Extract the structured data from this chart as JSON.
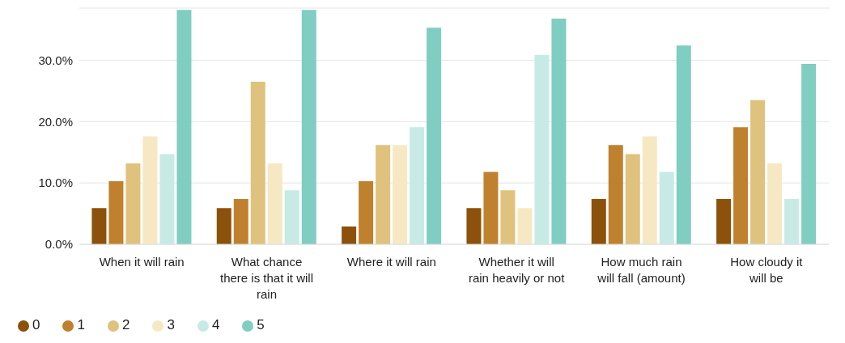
{
  "chart_data": {
    "type": "bar",
    "categories": [
      "When it will rain",
      "What chance there is that it will rain",
      "Where it will rain",
      "Whether it will rain heavily or not",
      "How much rain will fall (amount)",
      "How cloudy it will be"
    ],
    "series": [
      {
        "name": "0",
        "color": "#8c510a",
        "values": [
          5.9,
          5.9,
          2.9,
          5.9,
          7.4,
          7.4
        ]
      },
      {
        "name": "1",
        "color": "#bf812d",
        "values": [
          10.3,
          7.4,
          10.3,
          11.8,
          16.2,
          19.1
        ]
      },
      {
        "name": "2",
        "color": "#dfc27d",
        "values": [
          13.2,
          26.5,
          16.2,
          8.8,
          14.7,
          23.5
        ]
      },
      {
        "name": "3",
        "color": "#f6e8c3",
        "values": [
          17.6,
          13.2,
          16.2,
          5.9,
          17.6,
          13.2
        ]
      },
      {
        "name": "4",
        "color": "#c7eae5",
        "values": [
          14.7,
          8.8,
          19.1,
          30.9,
          11.8,
          7.4
        ]
      },
      {
        "name": "5",
        "color": "#80cdc1",
        "values": [
          38.2,
          38.2,
          35.3,
          36.8,
          32.4,
          29.4
        ]
      }
    ],
    "ylim": [
      0,
      38.5
    ],
    "yticks": [
      {
        "value": 0,
        "label": "0.0%"
      },
      {
        "value": 10,
        "label": "10.0%"
      },
      {
        "value": 20,
        "label": "20.0%"
      },
      {
        "value": 30,
        "label": "30.0%"
      }
    ],
    "grid": "y",
    "legend": "bottom left"
  }
}
